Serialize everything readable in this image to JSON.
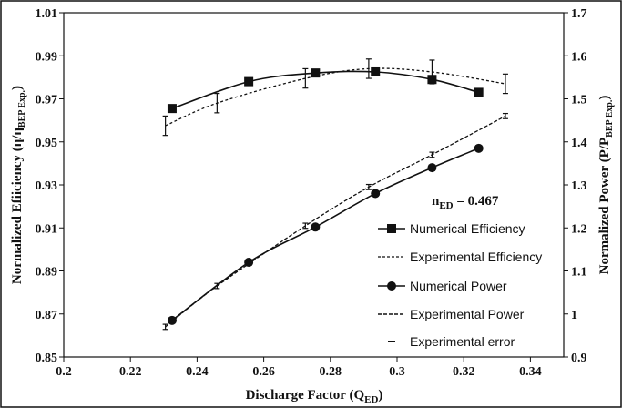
{
  "chart_data": {
    "type": "line",
    "title": "",
    "xlabel": {
      "main": "Discharge Factor (Q",
      "sub": "ED",
      "end": ")"
    },
    "ylabel_left": {
      "main": "Normalized Efiiciency (η/η",
      "sub": "BEP Exp.",
      "end": ")"
    },
    "ylabel_right": {
      "main": "Normalized Power (P/P",
      "sub": "BEP Exp.",
      "end": ")"
    },
    "xlim": [
      0.2,
      0.35
    ],
    "ylim_left": [
      0.85,
      1.01
    ],
    "ylim_right": [
      0.9,
      1.7
    ],
    "xticks": [
      "0.2",
      "0.22",
      "0.24",
      "0.26",
      "0.28",
      "0.3",
      "0.32",
      "0.34"
    ],
    "yticks_left": [
      "0.85",
      "0.87",
      "0.89",
      "0.91",
      "0.93",
      "0.95",
      "0.97",
      "0.99",
      "1.01"
    ],
    "yticks_right": [
      "0.9",
      "1",
      "1.1",
      "1.2",
      "1.3",
      "1.4",
      "1.5",
      "1.6",
      "1.7"
    ],
    "annotation": {
      "main": "n",
      "sub": "ED",
      "end": " = 0.467"
    },
    "legend_position": "right",
    "series": [
      {
        "name": "Numerical Efficiency",
        "axis": "left",
        "style": "solid",
        "marker": "square",
        "x": [
          0.2325,
          0.2555,
          0.2755,
          0.2935,
          0.3105,
          0.3245
        ],
        "y": [
          0.9655,
          0.978,
          0.982,
          0.9825,
          0.979,
          0.973
        ]
      },
      {
        "name": "Experimental Efficiency",
        "axis": "left",
        "style": "dashed",
        "marker": "none",
        "x": [
          0.2305,
          0.246,
          0.2725,
          0.2915,
          0.3105,
          0.3325
        ],
        "y": [
          0.9575,
          0.968,
          0.9795,
          0.984,
          0.9825,
          0.977
        ],
        "error": [
          0.0045,
          0.0045,
          0.0045,
          0.0045,
          0.0055,
          0.0045
        ]
      },
      {
        "name": "Numerical Power",
        "axis": "right",
        "style": "solid",
        "marker": "circle",
        "x": [
          0.2325,
          0.2555,
          0.2755,
          0.2935,
          0.3105,
          0.3245
        ],
        "y": [
          0.985,
          1.12,
          1.202,
          1.28,
          1.34,
          1.385
        ]
      },
      {
        "name": "Experimental Power",
        "axis": "right",
        "style": "dashed",
        "marker": "none",
        "x": [
          0.2305,
          0.246,
          0.2725,
          0.2915,
          0.3105,
          0.3325
        ],
        "y": [
          0.97,
          1.065,
          1.205,
          1.295,
          1.37,
          1.46
        ],
        "error": [
          0.006,
          0.006,
          0.006,
          0.006,
          0.006,
          0.006
        ]
      }
    ],
    "legend": {
      "error_label": "Experimental error"
    }
  }
}
